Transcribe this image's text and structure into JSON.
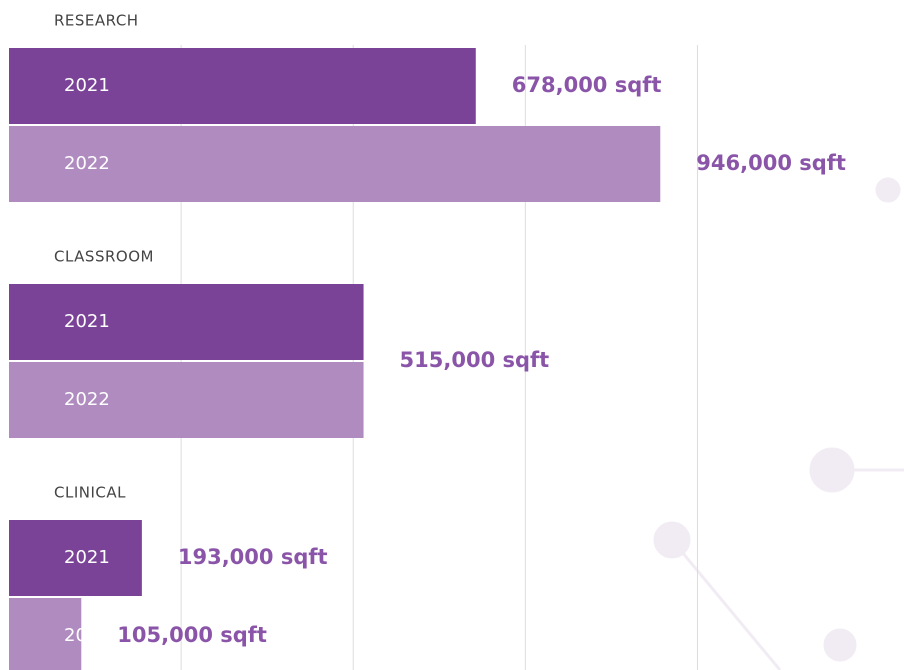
{
  "chart_data": {
    "type": "bar",
    "orientation": "horizontal",
    "categories": [
      "RESEARCH",
      "CLASSROOM",
      "CLINICAL"
    ],
    "series": [
      {
        "name": "2021",
        "color": "#7b4397",
        "values": [
          678000,
          515000,
          193000
        ],
        "value_labels": [
          "678,000 sqft",
          null,
          "193,000 sqft"
        ]
      },
      {
        "name": "2022",
        "color": "#b08bc0",
        "values": [
          946000,
          515000,
          105000
        ],
        "value_labels": [
          "946,000 sqft",
          "515,000 sqft",
          "105,000 sqft"
        ]
      }
    ],
    "xlim": [
      0,
      1300000
    ],
    "xticks": [
      250000,
      500000,
      750000,
      1000000
    ],
    "grid": true
  }
}
